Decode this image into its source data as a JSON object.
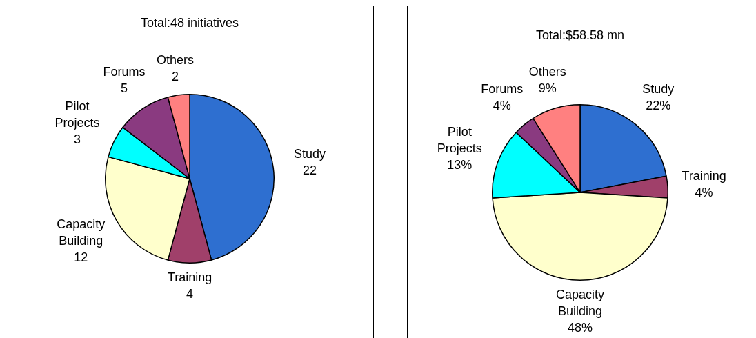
{
  "chart_data": [
    {
      "type": "pie",
      "title": "Total:48 initiatives",
      "categories": [
        "Study",
        "Training",
        "Capacity Building",
        "Pilot Projects",
        "Forums",
        "Others"
      ],
      "values": [
        22,
        4,
        12,
        3,
        5,
        2
      ],
      "colors": [
        "#2e6fd0",
        "#a0406a",
        "#ffffcc",
        "#00ffff",
        "#8a3a80",
        "#ff8080"
      ],
      "data_labels": true,
      "legend": false
    },
    {
      "type": "pie",
      "title": "Total:$58.58 mn",
      "categories": [
        "Study",
        "Training",
        "Capacity Building",
        "Pilot Projects",
        "Forums",
        "Others"
      ],
      "values": [
        22,
        4,
        48,
        13,
        4,
        9
      ],
      "colors": [
        "#2e6fd0",
        "#a0406a",
        "#ffffcc",
        "#00ffff",
        "#8a3a80",
        "#ff8080"
      ],
      "value_labels": [
        "22%",
        "4%",
        "48%",
        "13%",
        "4%",
        "9%"
      ],
      "legend": false
    }
  ]
}
